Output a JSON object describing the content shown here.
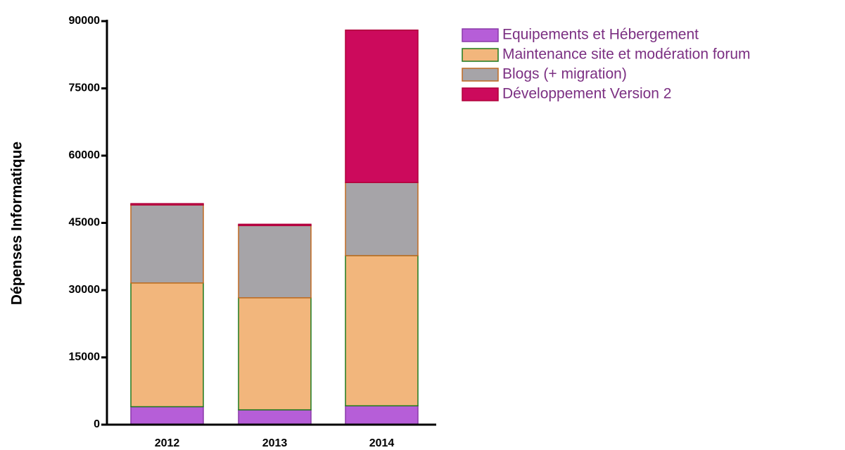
{
  "chart_data": {
    "type": "stacked_bar",
    "ylabel": "Dépenses Informatique",
    "categories": [
      "2012",
      "2013",
      "2014"
    ],
    "series": [
      {
        "name": "Equipements et Hébergement",
        "color": "#b65ed8",
        "edgecolor": "#8a3aa8",
        "values": [
          4000,
          3300,
          4200
        ]
      },
      {
        "name": "Maintenance site et modération forum",
        "color": "#f2b67c",
        "edgecolor": "#1e7a1e",
        "values": [
          27600,
          25000,
          33500
        ]
      },
      {
        "name": "Blogs (+ migration)",
        "color": "#a6a4a8",
        "edgecolor": "#c06a20",
        "values": [
          17400,
          16100,
          16300
        ]
      },
      {
        "name": "Développement Version 2",
        "color": "#cc0a5c",
        "edgecolor": "#b0003a",
        "values": [
          300,
          300,
          34000
        ]
      }
    ],
    "ylim": [
      0,
      90000
    ],
    "yticks": [
      0,
      15000,
      30000,
      45000,
      60000,
      75000,
      90000
    ]
  }
}
